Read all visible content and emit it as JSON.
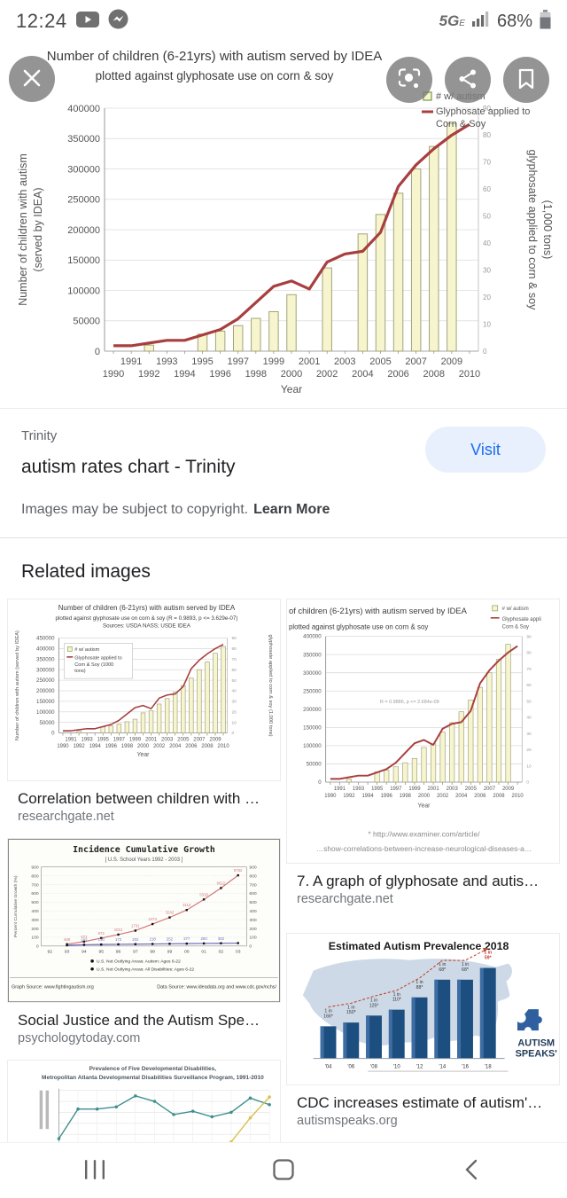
{
  "colors": {
    "accent": "#1a6ef0",
    "visit_bg": "#e8f0fe",
    "bar_fill": "#f7f5cd",
    "bar_stroke": "#a3a37c",
    "line_red": "#a83f3f",
    "prevalence_bar": "#1c4e80",
    "prevalence_highlight": "#c0392b"
  },
  "status_bar": {
    "time": "12:24",
    "network": "5G",
    "network_sub": "E",
    "battery": "68%"
  },
  "result": {
    "source": "Trinity",
    "title": "autism rates chart - Trinity",
    "visit_label": "Visit",
    "copyright_text": "Images may be subject to copyright.",
    "learn_more_label": "Learn More"
  },
  "related": {
    "heading": "Related images",
    "items": [
      {
        "caption": "Correlation between children with …",
        "domain": "researchgate.net"
      },
      {
        "caption": "7. A graph of glyphosate and autis…",
        "domain": "researchgate.net"
      },
      {
        "caption": "Social Justice and the Autism Spe…",
        "domain": "psychologytoday.com"
      },
      {
        "caption": "CDC increases estimate of autism'…",
        "domain": "autismspeaks.org"
      }
    ]
  },
  "chart_data": [
    {
      "id": "main",
      "type": "bar+line",
      "title": "Number of children (6-21yrs) with autism served by IDEA",
      "subtitle": "plotted against glyphosate use on corn & soy",
      "xlabel": "Year",
      "ylabel_left": "Number of children with autism (served by IDEA)",
      "ylabel_right": "glyphosate applied to corn & soy (1,000 tons)",
      "legend": [
        "# w/ autism",
        "Glyphosate applied to Corn & Soy"
      ],
      "legend_position": "top-right",
      "grid": true,
      "x": [
        1990,
        1991,
        1992,
        1993,
        1994,
        1995,
        1996,
        1997,
        1998,
        1999,
        2000,
        2001,
        2002,
        2003,
        2004,
        2005,
        2006,
        2007,
        2008,
        2009,
        2010
      ],
      "bars": [
        null,
        null,
        10000,
        null,
        null,
        28000,
        33000,
        42000,
        54000,
        65000,
        93000,
        null,
        137000,
        null,
        193000,
        225000,
        260000,
        300000,
        337000,
        375000,
        null
      ],
      "line": [
        2,
        2,
        3,
        4,
        4,
        6,
        8,
        12,
        18,
        24,
        26,
        23,
        33,
        36,
        37,
        44,
        61,
        69,
        75,
        80,
        84
      ],
      "ylim_left": [
        0,
        400000
      ],
      "ylim_right": [
        0,
        90
      ]
    },
    {
      "id": "rg_full",
      "type": "bar+line",
      "title": "Number of children (6-21yrs) with autism served by IDEA",
      "subtitle": "plotted against glyphosate use on corn & soy (R = 0.9893, p <= 3.629e-07)",
      "sources": "Sources: USDA NASS; USDE IDEA",
      "xlabel": "Year",
      "ylabel_left": "Number of children with autism (served by IDEA)",
      "ylabel_right": "glyphosate applied to corn & soy (1,000 tons)",
      "legend": [
        "# w/ autism",
        "Glyphosate applied to Corn & Soy (1000 tons)"
      ],
      "legend_position": "inside-top-left",
      "x": [
        1990,
        1991,
        1992,
        1993,
        1994,
        1995,
        1996,
        1997,
        1998,
        1999,
        2000,
        2001,
        2002,
        2003,
        2004,
        2005,
        2006,
        2007,
        2008,
        2009,
        2010
      ],
      "bars": [
        null,
        null,
        8000,
        null,
        null,
        28000,
        33000,
        42000,
        53000,
        65000,
        95000,
        105000,
        137000,
        163000,
        193000,
        225000,
        260000,
        300000,
        337000,
        378000,
        410000
      ],
      "line": [
        2,
        2,
        3,
        4,
        4,
        6,
        8,
        12,
        18,
        24,
        26,
        23,
        33,
        36,
        37,
        44,
        61,
        69,
        75,
        80,
        84
      ],
      "ylim_left": [
        0,
        450000
      ],
      "ylim_right": [
        0,
        90
      ]
    },
    {
      "id": "rg_crop",
      "type": "bar+line",
      "title": "of children (6-21yrs) with autism served by IDEA",
      "subtitle": "plotted against glyphosate use on corn & soy",
      "annotation": "R = 0.9886, p <= 2.684e-09",
      "footer": [
        "* http://www.examiner.com/article/",
        "…show-correlations-between-increase-neurological-diseases-a…"
      ],
      "xlabel": "Year",
      "legend": [
        "# w/ autism",
        "Glyphosate appli… Corn & Soy"
      ],
      "legend_position": "top-right",
      "x": [
        1990,
        1991,
        1992,
        1993,
        1994,
        1995,
        1996,
        1997,
        1998,
        1999,
        2000,
        2001,
        2002,
        2003,
        2004,
        2005,
        2006,
        2007,
        2008,
        2009,
        2010
      ],
      "bars": [
        null,
        null,
        8000,
        null,
        null,
        28000,
        33000,
        42000,
        53000,
        65000,
        95000,
        105000,
        137000,
        163000,
        193000,
        225000,
        260000,
        300000,
        337000,
        378000,
        null
      ],
      "line": [
        2,
        2,
        3,
        4,
        4,
        6,
        8,
        12,
        18,
        24,
        26,
        23,
        33,
        36,
        37,
        44,
        61,
        69,
        75,
        80,
        84
      ],
      "ylim_left": [
        0,
        400000
      ],
      "ylim_right": [
        0,
        90
      ]
    },
    {
      "id": "incidence",
      "type": "line",
      "title": "Incidence Cumulative Growth",
      "subtitle": "[ U.S. School Years 1992 - 2003 ]",
      "ylabel": "Percent Cumulative Growth (%)",
      "ylim": [
        0,
        900
      ],
      "x": [
        "92",
        "93",
        "94",
        "95",
        "96",
        "97",
        "98",
        "99",
        "00",
        "01",
        "02",
        "03"
      ],
      "series": [
        {
          "name": "U.S. Not Outlying Areas: Autism: Ages 6-22",
          "color": "#d07878",
          "values": [
            null,
            20,
            50,
            90,
            130,
            175,
            250,
            325,
            410,
            530,
            660,
            805
          ],
          "labels": [
            null,
            "468",
            "672",
            "872",
            "1012",
            "1731",
            "2473",
            "3242",
            "4112",
            "5318",
            "6622",
            "8752"
          ]
        },
        {
          "name": "U.S. Not Outlying Areas: All Disabilities: Ages 6-22",
          "color": "#6b6bbd",
          "values": [
            null,
            8,
            14,
            17,
            19,
            21,
            23,
            25,
            27,
            29,
            31,
            33
          ],
          "labels": [
            null,
            null,
            "102",
            "130",
            "172",
            "202",
            "218",
            "252",
            "277",
            "293",
            "302",
            null
          ]
        }
      ],
      "footer_left": "Graph Source: www.fightingautism.org",
      "footer_right": "Data Source: www.ideadata.org and www.cdc.gov/nchs/"
    },
    {
      "id": "prevalence",
      "type": "bar",
      "title": "Estimated Autism Prevalence 2018",
      "categories": [
        "'04",
        "'06",
        "'08",
        "'10",
        "'12",
        "'14",
        "'16",
        "'18"
      ],
      "labels": [
        "1 in 166*",
        "1 in 150*",
        "1 in 125*",
        "1 in 110*",
        "1 in 88*",
        "1 in 68*",
        "1 in 68*",
        "1 in 59*"
      ],
      "values": [
        6.0,
        6.7,
        8.0,
        9.1,
        11.4,
        14.7,
        14.7,
        16.9
      ],
      "logo": [
        "AUTISM",
        "SPEAKS'"
      ]
    },
    {
      "id": "maddsp",
      "type": "line",
      "title_lines": [
        "Prevalence of Five Developmental Disabilities,",
        "Metropolitan Atlanta Developmental Disabilities Surveillance Program, 1991-2010"
      ],
      "series": [
        {
          "name": "",
          "color": "#3e8f8f",
          "values": [
            0.8,
            3.5,
            3.5,
            3.7,
            4.7,
            4.2,
            3.0,
            3.3,
            2.8,
            3.2,
            4.5,
            3.9
          ]
        },
        {
          "name": "",
          "color": "#d9c050",
          "values": [
            null,
            null,
            null,
            null,
            null,
            null,
            null,
            null,
            null,
            0.5,
            2.7,
            4.6
          ]
        }
      ]
    }
  ]
}
